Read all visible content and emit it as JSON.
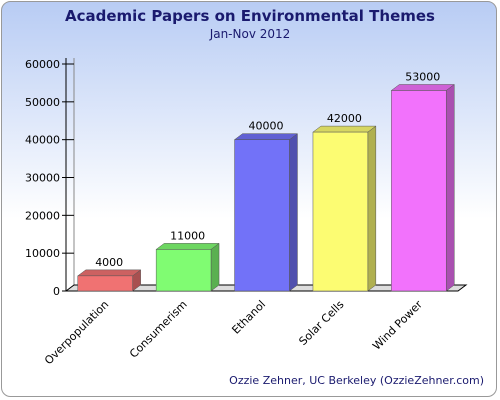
{
  "chart_data": {
    "type": "bar3d",
    "title": "Academic Papers on Environmental Themes",
    "subtitle": "Jan-Nov 2012",
    "categories": [
      "Overpopulation",
      "Consumerism",
      "Ethanol",
      "Solar Cells",
      "Wind Power"
    ],
    "values": [
      4000,
      11000,
      40000,
      42000,
      53000
    ],
    "colors": [
      "#f07272",
      "#80fc72",
      "#7272f8",
      "#fcfc72",
      "#f272fc"
    ],
    "ylim": [
      0,
      60000
    ],
    "yticks": [
      0,
      10000,
      20000,
      30000,
      40000,
      50000,
      60000
    ],
    "credit": "Ozzie Zehner, UC Berkeley (OzzieZehner.com)"
  }
}
